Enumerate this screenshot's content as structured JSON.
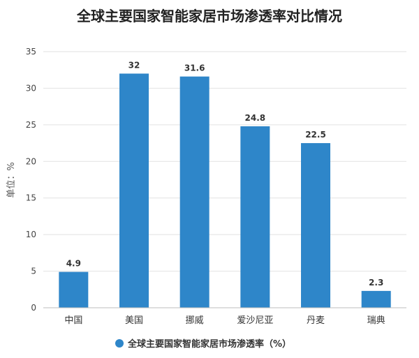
{
  "chart_data": {
    "type": "bar",
    "title": "全球主要国家智能家居市场渗透率对比情况",
    "ylabel": "单位：%",
    "xlabel": "",
    "categories": [
      "中国",
      "美国",
      "挪威",
      "爱沙尼亚",
      "丹麦",
      "瑞典"
    ],
    "series": [
      {
        "name": "全球主要国家智能家居市场渗透率（%）",
        "values": [
          4.9,
          32,
          31.6,
          24.8,
          22.5,
          2.3
        ]
      }
    ],
    "ylim": [
      0,
      35
    ],
    "yticks": [
      0,
      5,
      10,
      15,
      20,
      25,
      30,
      35
    ],
    "grid": true,
    "legend_position": "bottom",
    "colors": {
      "bar": "#2e86c9",
      "legend_marker": "#2e86c9"
    }
  }
}
